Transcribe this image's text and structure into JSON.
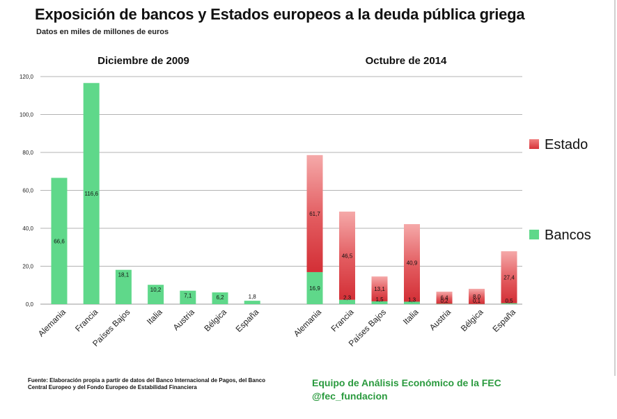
{
  "title": "Exposición de bancos y Estados europeos a la deuda pública griega",
  "subtitle": "Datos en miles de millones de euros",
  "footer": {
    "source": "Fuente: Elaboración propia a partir de datos del Banco Internacional de Pagos, del Banco Central Europeo y del Fondo Europeo de Estabilidad Financiera",
    "team": "Equipo de Análisis Económico de la FEC",
    "handle": "@fec_fundacion"
  },
  "colors": {
    "bancos": "#5fd88a",
    "estado_dark": "#d8383f",
    "estado_light": "#f2a6a6",
    "grid": "#9a9a9a"
  },
  "chart_data": {
    "type": "bar",
    "stacked": true,
    "ylim": [
      0,
      120
    ],
    "yticks": [
      "0,0",
      "20,0",
      "40,0",
      "60,0",
      "80,0",
      "100,0",
      "120,0"
    ],
    "grid": true,
    "legend": {
      "placement": "right",
      "entries": [
        {
          "name": "Estado",
          "color": "#e0474f"
        },
        {
          "name": "Bancos",
          "color": "#5fd88a"
        }
      ]
    },
    "panels": [
      {
        "title": "Diciembre de 2009",
        "categories": [
          "Alemania",
          "Francia",
          "Países Bajos",
          "Italia",
          "Austria",
          "Bélgica",
          "España"
        ],
        "series": [
          {
            "name": "Bancos",
            "values": [
              66.6,
              116.6,
              18.1,
              10.2,
              7.1,
              6.2,
              1.8
            ],
            "labels": [
              "66,6",
              "116,6",
              "18,1",
              "10,2",
              "7,1",
              "6,2",
              "1,8"
            ]
          }
        ]
      },
      {
        "title": "Octubre de 2014",
        "categories": [
          "Alemania",
          "Francia",
          "Países Bajos",
          "Italia",
          "Austria",
          "Bélgica",
          "España"
        ],
        "series": [
          {
            "name": "Bancos",
            "values": [
              16.9,
              2.3,
              1.5,
              1.3,
              0.2,
              0.1,
              0.5
            ],
            "labels": [
              "16,9",
              "2,3",
              "1,5",
              "1,3",
              "0,2",
              "0,1",
              "0,5"
            ]
          },
          {
            "name": "Estado",
            "values": [
              61.7,
              46.5,
              13.1,
              40.9,
              6.4,
              8.0,
              27.4
            ],
            "labels": [
              "61,7",
              "46,5",
              "13,1",
              "40,9",
              "6,4",
              "8,0",
              "27,4"
            ]
          }
        ]
      }
    ]
  }
}
